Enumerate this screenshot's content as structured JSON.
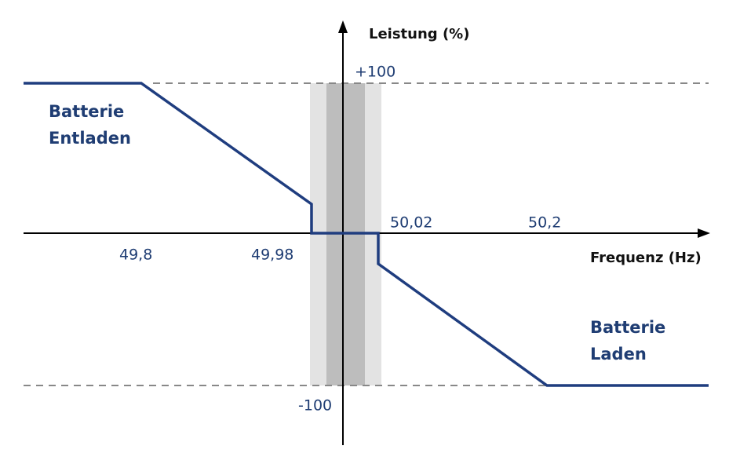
{
  "axes": {
    "y_label": "Leistung (%)",
    "x_label": "Frequenz (Hz)",
    "y_ticks": [
      "+100",
      "-100"
    ],
    "x_ticks": [
      "49,8",
      "49,98",
      "50,02",
      "50,2"
    ]
  },
  "regions": {
    "discharge": {
      "lines": [
        "Batterie",
        "Entladen"
      ]
    },
    "charge": {
      "lines": [
        "Batterie",
        "Laden"
      ]
    }
  }
}
